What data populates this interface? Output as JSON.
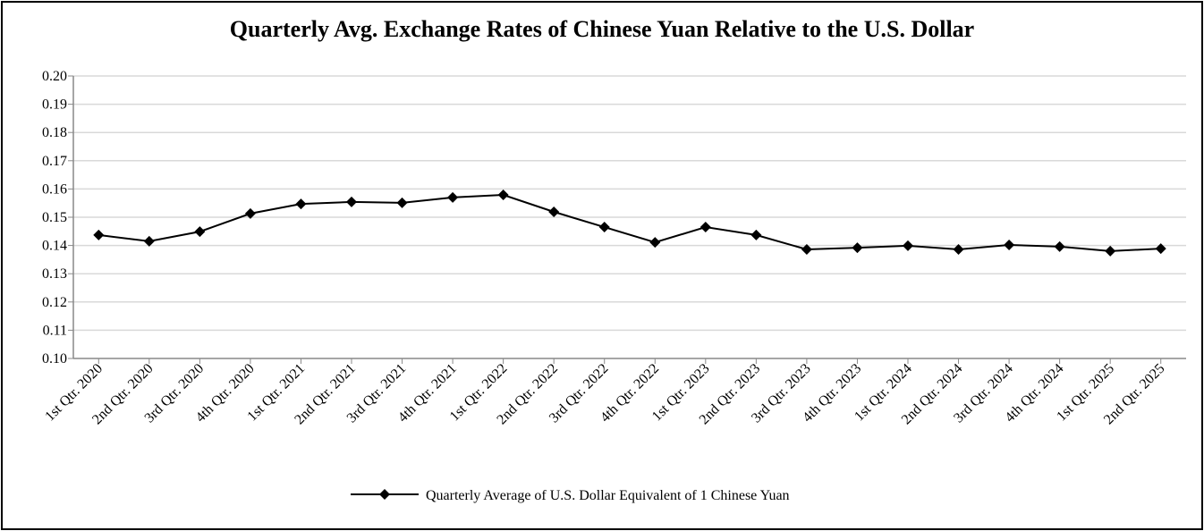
{
  "chart_data": {
    "type": "line",
    "title": "Quarterly Avg. Exchange Rates of Chinese Yuan Relative to the U.S. Dollar",
    "xlabel": "",
    "ylabel": "",
    "ylim": [
      0.1,
      0.2
    ],
    "yticks": [
      "0.10",
      "0.11",
      "0.12",
      "0.13",
      "0.14",
      "0.15",
      "0.16",
      "0.17",
      "0.18",
      "0.19",
      "0.20"
    ],
    "grid": true,
    "legend_position": "bottom",
    "categories": [
      "1st Qtr. 2020",
      "2nd Qtr. 2020",
      "3rd Qtr. 2020",
      "4th Qtr. 2020",
      "1st Qtr. 2021",
      "2nd Qtr. 2021",
      "3rd Qtr. 2021",
      "4th Qtr. 2021",
      "1st Qtr. 2022",
      "2nd Qtr. 2022",
      "3rd Qtr. 2022",
      "4th Qtr. 2022",
      "1st Qtr. 2023",
      "2nd Qtr. 2023",
      "3rd Qtr. 2023",
      "4th Qtr. 2023",
      "1st Qtr. 2024",
      "2nd Qtr. 2024",
      "3rd Qtr. 2024",
      "4th Qtr. 2024",
      "1st Qtr. 2025",
      "2nd Qtr. 2025"
    ],
    "series": [
      {
        "name": "Quarterly Average of U.S. Dollar Equivalent of 1 Chinese Yuan",
        "color": "#000000",
        "marker": "diamond",
        "values": [
          0.1437,
          0.1415,
          0.1449,
          0.1513,
          0.1547,
          0.1554,
          0.1551,
          0.157,
          0.1579,
          0.1519,
          0.1465,
          0.1411,
          0.1465,
          0.1437,
          0.1386,
          0.1392,
          0.1399,
          0.1386,
          0.1402,
          0.1396,
          0.138,
          0.1389
        ]
      }
    ]
  }
}
